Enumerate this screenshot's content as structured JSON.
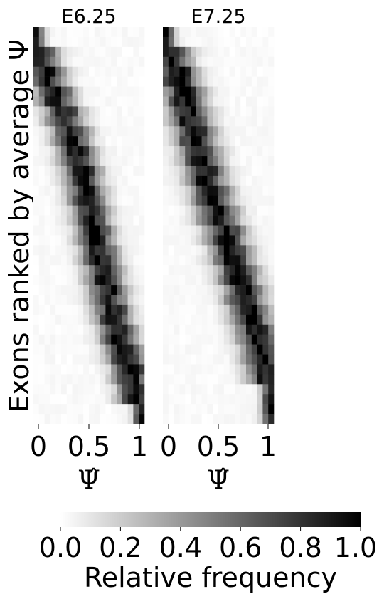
{
  "chart_data": {
    "type": "heatmap",
    "ylabel": "Exons ranked by average Ψ",
    "colorbar": {
      "label": "Relative frequency",
      "ticks": [
        "0.0",
        "0.2",
        "0.4",
        "0.6",
        "0.8",
        "1.0"
      ],
      "range": [
        0.0,
        1.0
      ],
      "colormap": "white-to-black (gray_r)"
    },
    "panels": [
      {
        "title": "E6.25",
        "xlabel": "Ψ̂",
        "xticks": [
          "0",
          "0.5",
          "1"
        ],
        "columns": 20,
        "rows": 40,
        "peak_ramp": [
          0.0,
          0.04,
          0.1,
          0.18,
          0.26,
          0.33,
          0.39,
          0.44,
          0.48,
          0.52,
          0.56,
          0.6,
          0.64,
          0.68,
          0.73,
          0.78,
          0.84,
          0.9,
          0.95,
          1.0
        ],
        "peak_width": 2.2,
        "matrix_note": "row i (top to bottom) has frequency mass concentrated around column peak_ramp[i/2]; values 0.0-1.0"
      },
      {
        "title": "E7.25",
        "xlabel": "Ψ̂",
        "xticks": [
          "0",
          "0.5",
          "1"
        ],
        "columns": 20,
        "rows": 40,
        "peak_ramp": [
          0.0,
          0.05,
          0.12,
          0.18,
          0.23,
          0.28,
          0.33,
          0.38,
          0.44,
          0.5,
          0.57,
          0.63,
          0.69,
          0.75,
          0.8,
          0.86,
          0.92,
          0.97,
          1.0,
          1.0
        ],
        "peak_width": 2.4,
        "matrix_note": "row i (top to bottom) has frequency mass concentrated around column peak_ramp[i/2]; values 0.0-1.0"
      }
    ]
  }
}
